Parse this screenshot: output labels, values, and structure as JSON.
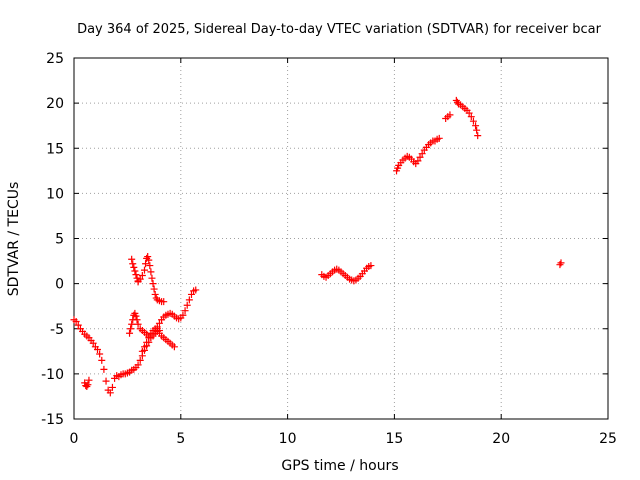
{
  "chart_data": {
    "type": "scatter",
    "title": "Day 364 of 2025, Sidereal Day-to-day VTEC variation (SDTVAR) for receiver bcar",
    "xlabel": "GPS time / hours",
    "ylabel": "SDTVAR / TECUs",
    "xlim": [
      0,
      25
    ],
    "ylim": [
      -15,
      25
    ],
    "xticks": [
      "0",
      "5",
      "10",
      "15",
      "20",
      "25"
    ],
    "yticks": [
      "-15",
      "-10",
      "-5",
      "0",
      "5",
      "10",
      "15",
      "20",
      "25"
    ],
    "grid": true,
    "marker": "plus",
    "color": "#ff0000",
    "series": [
      {
        "x": [
          0.0,
          0.1,
          0.2,
          0.3,
          0.4,
          0.5,
          0.6,
          0.7,
          0.8,
          0.9,
          1.0,
          1.1,
          1.2,
          1.3,
          1.4,
          1.5,
          1.6,
          1.7,
          1.8,
          1.9,
          2.0,
          2.1,
          2.2,
          2.3,
          2.4,
          2.5,
          2.6,
          2.7,
          2.8,
          2.9,
          3.0,
          3.1,
          3.2,
          3.3,
          3.4,
          3.5,
          3.6,
          3.7,
          3.8,
          3.9,
          4.0,
          4.1,
          4.2,
          4.3,
          4.4,
          4.5,
          4.6,
          4.7,
          4.8,
          4.9,
          5.0,
          5.1,
          5.2,
          5.3,
          5.4,
          5.5,
          5.6,
          5.7
        ],
        "y": [
          -4.0,
          -4.2,
          -4.6,
          -5.0,
          -5.3,
          -5.6,
          -5.8,
          -6.0,
          -6.3,
          -6.6,
          -7.0,
          -7.3,
          -7.8,
          -8.5,
          -9.5,
          -10.8,
          -11.8,
          -12.1,
          -11.5,
          -10.5,
          -10.2,
          -10.3,
          -10.1,
          -10.0,
          -10.0,
          -9.9,
          -9.8,
          -9.6,
          -9.5,
          -9.3,
          -9.0,
          -8.5,
          -8.0,
          -7.4,
          -6.9,
          -6.5,
          -6.0,
          -5.6,
          -5.2,
          -4.8,
          -4.4,
          -4.0,
          -3.7,
          -3.5,
          -3.4,
          -3.3,
          -3.4,
          -3.6,
          -3.8,
          -3.9,
          -3.8,
          -3.5,
          -3.0,
          -2.4,
          -1.8,
          -1.2,
          -0.8,
          -0.7
        ]
      },
      {
        "x": [
          0.5,
          0.55,
          0.6,
          0.65,
          0.7
        ],
        "y": [
          -11.0,
          -11.3,
          -11.4,
          -11.2,
          -10.7
        ]
      },
      {
        "x": [
          2.6,
          2.65,
          2.7,
          2.75,
          2.8,
          2.85,
          2.9,
          2.95,
          3.0,
          3.1,
          3.2,
          3.3,
          3.4,
          3.5,
          3.6,
          3.7,
          3.8,
          3.9,
          4.0,
          4.1,
          4.2,
          4.3,
          4.4,
          4.5,
          4.6,
          4.7
        ],
        "y": [
          -5.5,
          -5.0,
          -4.5,
          -4.0,
          -3.5,
          -3.3,
          -3.6,
          -4.0,
          -4.5,
          -5.0,
          -5.2,
          -5.4,
          -5.6,
          -5.8,
          -6.0,
          -5.8,
          -5.5,
          -5.3,
          -5.5,
          -5.8,
          -6.0,
          -6.2,
          -6.4,
          -6.6,
          -6.8,
          -7.0
        ]
      },
      {
        "x": [
          2.7,
          2.75,
          2.8,
          2.85,
          2.9,
          2.95,
          3.0
        ],
        "y": [
          2.7,
          2.2,
          1.8,
          1.4,
          1.0,
          0.6,
          0.3
        ]
      },
      {
        "x": [
          3.0,
          3.1,
          3.2,
          3.3,
          3.35,
          3.4,
          3.45,
          3.5,
          3.55,
          3.6,
          3.65,
          3.7,
          3.75,
          3.8,
          3.85,
          3.9,
          4.0,
          4.1,
          4.2
        ],
        "y": [
          0.2,
          0.5,
          0.9,
          1.5,
          2.2,
          2.8,
          3.0,
          2.6,
          2.0,
          1.3,
          0.6,
          0.0,
          -0.6,
          -1.2,
          -1.6,
          -1.8,
          -1.9,
          -2.0,
          -2.0
        ]
      },
      {
        "x": [
          3.2,
          3.3,
          3.4,
          3.5,
          3.6,
          3.7,
          3.8,
          3.9,
          4.0
        ],
        "y": [
          -7.5,
          -7.0,
          -6.5,
          -6.0,
          -5.5,
          -5.2,
          -5.0,
          -5.0,
          -5.2
        ]
      },
      {
        "x": [
          11.6,
          11.7,
          11.8,
          11.9,
          12.0,
          12.1,
          12.2,
          12.3,
          12.4,
          12.5,
          12.6,
          12.7,
          12.8,
          12.9,
          13.0,
          13.1,
          13.2,
          13.3,
          13.4,
          13.5,
          13.6,
          13.7,
          13.8,
          13.9
        ],
        "y": [
          1.0,
          0.8,
          0.7,
          0.9,
          1.1,
          1.3,
          1.5,
          1.6,
          1.5,
          1.3,
          1.1,
          0.9,
          0.7,
          0.5,
          0.4,
          0.3,
          0.4,
          0.6,
          0.8,
          1.1,
          1.4,
          1.7,
          1.9,
          2.0
        ]
      },
      {
        "x": [
          15.1,
          15.15,
          15.2,
          15.3,
          15.4,
          15.5,
          15.6,
          15.7,
          15.8,
          15.9,
          16.0,
          16.1,
          16.2,
          16.3,
          16.4,
          16.5,
          16.6,
          16.7,
          16.8,
          16.9,
          17.0,
          17.1
        ],
        "y": [
          12.5,
          12.8,
          13.1,
          13.4,
          13.7,
          13.9,
          14.1,
          14.0,
          13.8,
          13.5,
          13.3,
          13.6,
          14.0,
          14.4,
          14.8,
          15.1,
          15.4,
          15.6,
          15.8,
          15.8,
          16.0,
          16.1
        ]
      },
      {
        "x": [
          17.4,
          17.5,
          17.6
        ],
        "y": [
          18.3,
          18.5,
          18.7
        ]
      },
      {
        "x": [
          17.9,
          17.95,
          18.0,
          18.1,
          18.2,
          18.3,
          18.4,
          18.5,
          18.6,
          18.7,
          18.8,
          18.85,
          18.9
        ],
        "y": [
          20.3,
          20.1,
          19.9,
          19.8,
          19.6,
          19.4,
          19.2,
          18.9,
          18.5,
          18.0,
          17.5,
          17.0,
          16.4
        ]
      },
      {
        "x": [
          22.75,
          22.8
        ],
        "y": [
          2.1,
          2.3
        ]
      }
    ]
  }
}
